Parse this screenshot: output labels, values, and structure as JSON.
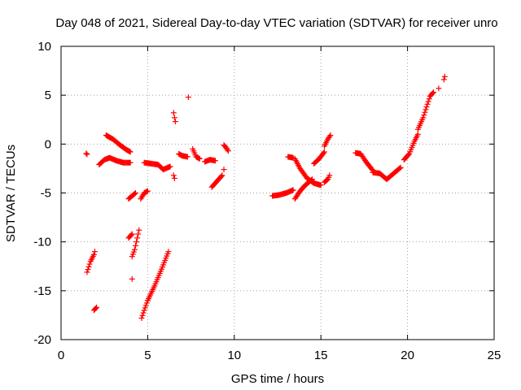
{
  "chart_data": {
    "type": "scatter",
    "title": "Day 048 of 2021, Sidereal Day-to-day VTEC variation (SDTVAR) for receiver unro",
    "xlabel": "GPS time / hours",
    "ylabel": "SDTVAR / TECUs",
    "xlim": [
      0,
      25
    ],
    "ylim": [
      -20,
      10
    ],
    "xticks": [
      "0",
      "5",
      "10",
      "15",
      "20",
      "25"
    ],
    "yticks": [
      "-20",
      "-15",
      "-10",
      "-5",
      "0",
      "5",
      "10"
    ],
    "grid": true,
    "legend": "none",
    "marker": "plus",
    "series_color": "#ff0000",
    "segments": [
      {
        "x": [
          1.45,
          1.5
        ],
        "y": [
          -0.95,
          -1.05
        ]
      },
      {
        "x": [
          1.5,
          1.7,
          1.9,
          1.95
        ],
        "y": [
          -13.1,
          -12.0,
          -11.3,
          -11.0
        ]
      },
      {
        "x": [
          1.9,
          2.0,
          2.05
        ],
        "y": [
          -17.0,
          -16.8,
          -16.7
        ]
      },
      {
        "x": [
          2.2,
          2.5,
          2.8,
          3.2,
          3.6,
          4.0
        ],
        "y": [
          -2.1,
          -1.6,
          -1.4,
          -1.7,
          -1.9,
          -1.9
        ]
      },
      {
        "x": [
          2.6,
          3.0,
          3.4,
          3.8,
          4.0
        ],
        "y": [
          0.9,
          0.5,
          -0.1,
          -0.6,
          -0.8
        ]
      },
      {
        "x": [
          3.9,
          4.1,
          4.3
        ],
        "y": [
          -5.6,
          -5.3,
          -5.0
        ]
      },
      {
        "x": [
          3.9,
          4.0,
          4.1
        ],
        "y": [
          -9.6,
          -9.4,
          -9.2
        ]
      },
      {
        "x": [
          4.1,
          4.25,
          4.35,
          4.5
        ],
        "y": [
          -11.5,
          -10.8,
          -10.0,
          -8.8
        ]
      },
      {
        "x": [
          4.1
        ],
        "y": [
          -13.8
        ]
      },
      {
        "x": [
          4.6,
          4.8,
          5.0
        ],
        "y": [
          -5.6,
          -5.0,
          -4.8
        ]
      },
      {
        "x": [
          4.65,
          4.8,
          5.0
        ],
        "y": [
          -17.8,
          -17.0,
          -16.0
        ]
      },
      {
        "x": [
          5.0,
          5.4,
          5.8,
          6.2
        ],
        "y": [
          -16.0,
          -14.5,
          -12.8,
          -11.0
        ]
      },
      {
        "x": [
          4.8,
          5.2,
          5.6,
          5.9,
          6.3
        ],
        "y": [
          -1.9,
          -2.0,
          -2.1,
          -2.6,
          -2.3
        ]
      },
      {
        "x": [
          6.5,
          6.55,
          6.6
        ],
        "y": [
          3.2,
          2.7,
          2.3
        ]
      },
      {
        "x": [
          6.5,
          6.55
        ],
        "y": [
          -3.2,
          -3.5
        ]
      },
      {
        "x": [
          6.8,
          7.0,
          7.3
        ],
        "y": [
          -1.0,
          -1.2,
          -1.3
        ]
      },
      {
        "x": [
          7.35
        ],
        "y": [
          4.8
        ]
      },
      {
        "x": [
          7.6,
          7.8,
          8.0
        ],
        "y": [
          -0.5,
          -1.3,
          -1.5
        ]
      },
      {
        "x": [
          8.3,
          8.6,
          8.9
        ],
        "y": [
          -1.8,
          -1.6,
          -1.7
        ]
      },
      {
        "x": [
          8.7,
          9.0,
          9.3
        ],
        "y": [
          -4.4,
          -3.8,
          -3.2
        ]
      },
      {
        "x": [
          9.4
        ],
        "y": [
          -2.6
        ]
      },
      {
        "x": [
          9.4,
          9.5,
          9.65
        ],
        "y": [
          -0.1,
          -0.3,
          -0.7
        ]
      },
      {
        "x": [
          12.2,
          12.6,
          13.0,
          13.4
        ],
        "y": [
          -5.3,
          -5.2,
          -5.0,
          -4.7
        ]
      },
      {
        "x": [
          13.1,
          13.4
        ],
        "y": [
          -1.3,
          -1.4
        ]
      },
      {
        "x": [
          13.5,
          13.8,
          14.2,
          14.6,
          15.0
        ],
        "y": [
          -1.5,
          -2.5,
          -3.5,
          -4.0,
          -4.2
        ]
      },
      {
        "x": [
          13.5,
          13.8,
          14.1,
          14.5
        ],
        "y": [
          -5.6,
          -4.8,
          -4.2,
          -3.6
        ]
      },
      {
        "x": [
          14.6,
          14.9,
          15.2
        ],
        "y": [
          -2.0,
          -1.5,
          -0.8
        ]
      },
      {
        "x": [
          15.2,
          15.4,
          15.55
        ],
        "y": [
          -0.2,
          0.5,
          0.9
        ]
      },
      {
        "x": [
          15.2,
          15.4,
          15.5
        ],
        "y": [
          -3.9,
          -3.6,
          -3.2
        ]
      },
      {
        "x": [
          17.0,
          17.3,
          17.6,
          18.0
        ],
        "y": [
          -0.9,
          -1.0,
          -1.8,
          -2.7
        ]
      },
      {
        "x": [
          18.0,
          18.4,
          18.8,
          19.2,
          19.6
        ],
        "y": [
          -2.9,
          -3.0,
          -3.6,
          -3.0,
          -2.4
        ]
      },
      {
        "x": [
          19.8,
          20.1,
          20.4,
          20.6
        ],
        "y": [
          -1.6,
          -1.0,
          0.3,
          1.0
        ]
      },
      {
        "x": [
          20.6,
          20.9,
          21.1,
          21.3,
          21.5
        ],
        "y": [
          1.5,
          2.7,
          3.8,
          4.9,
          5.3
        ]
      },
      {
        "x": [
          21.8
        ],
        "y": [
          5.7
        ]
      },
      {
        "x": [
          22.1,
          22.15
        ],
        "y": [
          6.6,
          6.9
        ]
      }
    ]
  }
}
